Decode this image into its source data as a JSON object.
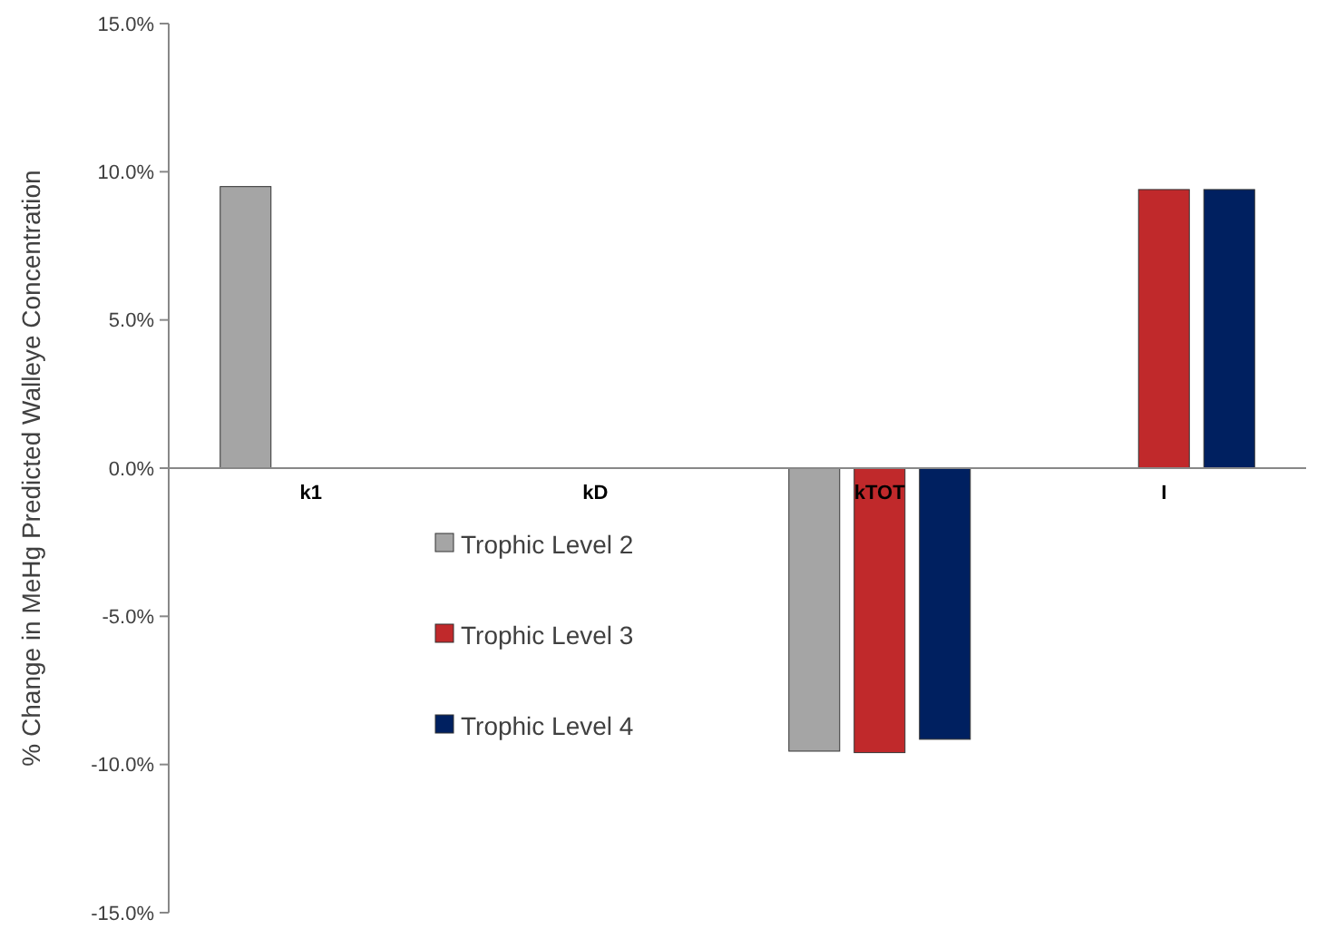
{
  "chart_data": {
    "type": "bar",
    "ylabel": "% Change in MeHg Predicted Walleye Concentration",
    "categories": [
      "k1",
      "kD",
      "kTOT",
      "I"
    ],
    "series": [
      {
        "name": "Trophic Level 2",
        "color": "#a5a5a5",
        "values": [
          9.5,
          0,
          -9.55,
          0
        ]
      },
      {
        "name": "Trophic Level 3",
        "color": "#c0292b",
        "values": [
          0,
          0,
          -9.6,
          9.4
        ]
      },
      {
        "name": "Trophic Level 4",
        "color": "#002060",
        "values": [
          0,
          0,
          -9.15,
          9.4
        ]
      }
    ],
    "ylim": [
      -15,
      15
    ],
    "yticks": [
      {
        "value": -15,
        "label": "-15.0%"
      },
      {
        "value": -10,
        "label": "-10.0%"
      },
      {
        "value": -5,
        "label": "-5.0%"
      },
      {
        "value": 0,
        "label": "0.0%"
      },
      {
        "value": 5,
        "label": "5.0%"
      },
      {
        "value": 10,
        "label": "10.0%"
      },
      {
        "value": 15,
        "label": "15.0%"
      }
    ],
    "grid": false,
    "legend": "bottom left"
  }
}
